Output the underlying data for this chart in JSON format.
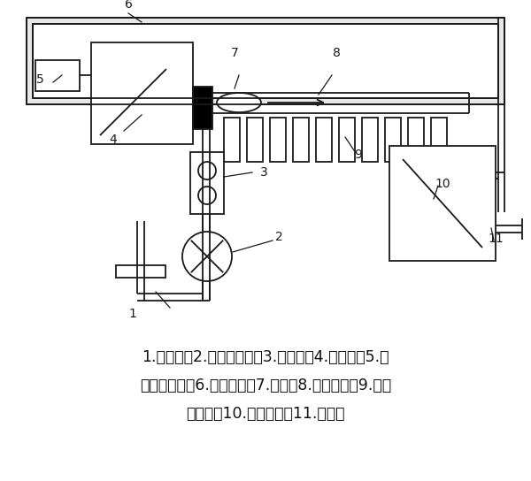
{
  "fig_width": 6.0,
  "fig_height": 5.44,
  "dpi": 100,
  "bg_color": "#ffffff",
  "line_color": "#1a1a1a",
  "lw": 1.3,
  "caption_lines": [
    "1.进液口；2.压力传感器；3.堵塞阀；4.注射泵；5.注",
    "射泵控制阀；6.气体管路；7.气泡；8.第二管段；9.光学",
    "传感器；10.储液容器；11.出液口"
  ],
  "caption_fontsize": 12.5
}
